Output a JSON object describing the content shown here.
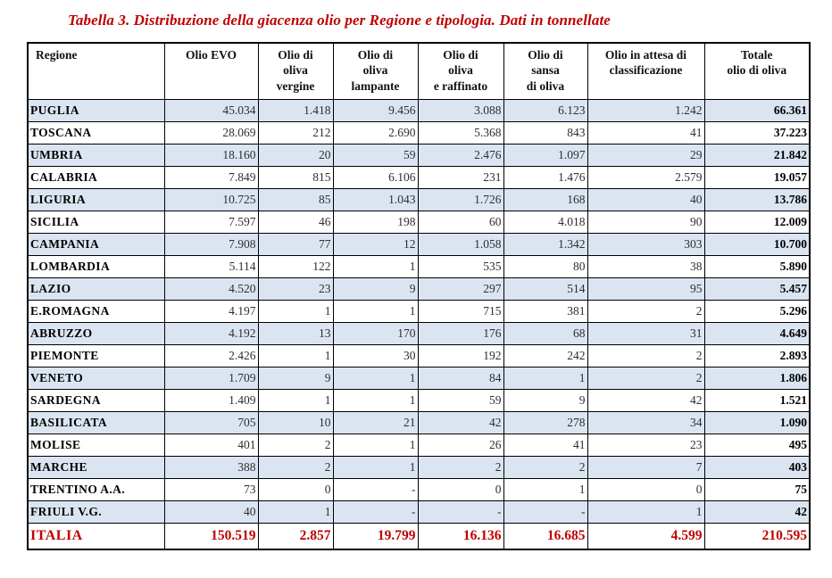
{
  "title": "Tabella 3. Distribuzione della giacenza olio per Regione e tipologia. Dati in tonnellate",
  "colors": {
    "accent_red": "#c00000",
    "row_shade": "#dbe5f1",
    "border_black": "#000000"
  },
  "chart_data": {
    "type": "table",
    "title": "Tabella 3. Distribuzione della giacenza olio per Regione e tipologia. Dati in tonnellate",
    "headers": [
      "Regione",
      "Olio EVO",
      "Olio di\noliva\nvergine",
      "Olio di\noliva\nlampante",
      "Olio di\noliva\ne raffinato",
      "Olio di\nsansa\ndi oliva",
      "Olio in attesa di\nclassificazione",
      "Totale\nolio di oliva"
    ],
    "rows": [
      {
        "region": "PUGLIA",
        "values": [
          "45.034",
          "1.418",
          "9.456",
          "3.088",
          "6.123",
          "1.242",
          "66.361"
        ]
      },
      {
        "region": "TOSCANA",
        "values": [
          "28.069",
          "212",
          "2.690",
          "5.368",
          "843",
          "41",
          "37.223"
        ]
      },
      {
        "region": "UMBRIA",
        "values": [
          "18.160",
          "20",
          "59",
          "2.476",
          "1.097",
          "29",
          "21.842"
        ]
      },
      {
        "region": "CALABRIA",
        "values": [
          "7.849",
          "815",
          "6.106",
          "231",
          "1.476",
          "2.579",
          "19.057"
        ]
      },
      {
        "region": "LIGURIA",
        "values": [
          "10.725",
          "85",
          "1.043",
          "1.726",
          "168",
          "40",
          "13.786"
        ]
      },
      {
        "region": "SICILIA",
        "values": [
          "7.597",
          "46",
          "198",
          "60",
          "4.018",
          "90",
          "12.009"
        ]
      },
      {
        "region": "CAMPANIA",
        "values": [
          "7.908",
          "77",
          "12",
          "1.058",
          "1.342",
          "303",
          "10.700"
        ]
      },
      {
        "region": "LOMBARDIA",
        "values": [
          "5.114",
          "122",
          "1",
          "535",
          "80",
          "38",
          "5.890"
        ]
      },
      {
        "region": "LAZIO",
        "values": [
          "4.520",
          "23",
          "9",
          "297",
          "514",
          "95",
          "5.457"
        ]
      },
      {
        "region": "E.ROMAGNA",
        "values": [
          "4.197",
          "1",
          "1",
          "715",
          "381",
          "2",
          "5.296"
        ]
      },
      {
        "region": "ABRUZZO",
        "values": [
          "4.192",
          "13",
          "170",
          "176",
          "68",
          "31",
          "4.649"
        ]
      },
      {
        "region": "PIEMONTE",
        "values": [
          "2.426",
          "1",
          "30",
          "192",
          "242",
          "2",
          "2.893"
        ]
      },
      {
        "region": "VENETO",
        "values": [
          "1.709",
          "9",
          "1",
          "84",
          "1",
          "2",
          "1.806"
        ]
      },
      {
        "region": "SARDEGNA",
        "values": [
          "1.409",
          "1",
          "1",
          "59",
          "9",
          "42",
          "1.521"
        ]
      },
      {
        "region": "BASILICATA",
        "values": [
          "705",
          "10",
          "21",
          "42",
          "278",
          "34",
          "1.090"
        ]
      },
      {
        "region": "MOLISE",
        "values": [
          "401",
          "2",
          "1",
          "26",
          "41",
          "23",
          "495"
        ]
      },
      {
        "region": "MARCHE",
        "values": [
          "388",
          "2",
          "1",
          "2",
          "2",
          "7",
          "403"
        ]
      },
      {
        "region": "TRENTINO A.A.",
        "values": [
          "73",
          "0",
          "-",
          "0",
          "1",
          "0",
          "75"
        ]
      },
      {
        "region": "FRIULI V.G.",
        "values": [
          "40",
          "1",
          "-",
          "-",
          "-",
          "1",
          "42"
        ]
      }
    ],
    "total_row": {
      "region": "ITALIA",
      "values": [
        "150.519",
        "2.857",
        "19.799",
        "16.136",
        "16.685",
        "4.599",
        "210.595"
      ]
    }
  }
}
